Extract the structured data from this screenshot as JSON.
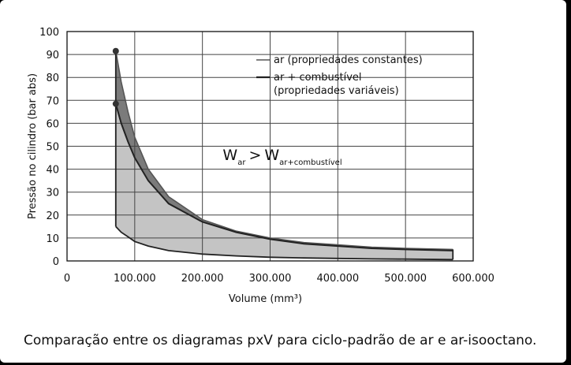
{
  "chart_data": {
    "type": "area",
    "xlabel": "Volume (mm³)",
    "ylabel": "Pressão no cilindro (bar abs)",
    "xlim": [
      0,
      600000
    ],
    "ylim": [
      0,
      100
    ],
    "x_ticks": [
      0,
      100000,
      200000,
      300000,
      400000,
      500000,
      600000
    ],
    "x_tick_labels": [
      "0",
      "100.000",
      "200.000",
      "300.000",
      "400.000",
      "500.000",
      "600.000"
    ],
    "y_ticks": [
      0,
      10,
      20,
      30,
      40,
      50,
      60,
      70,
      80,
      90,
      100
    ],
    "y_tick_labels": [
      "0",
      "10",
      "20",
      "30",
      "40",
      "50",
      "60",
      "70",
      "80",
      "90",
      "100"
    ],
    "grid": true,
    "legend_position": "top-right",
    "series": [
      {
        "name": "ar (propriedades constantes)",
        "color": "#7a7a7a",
        "expansion": {
          "x": [
            72000,
            80000,
            90000,
            100000,
            120000,
            150000,
            200000,
            250000,
            300000,
            350000,
            400000,
            450000,
            500000,
            570000
          ],
          "y": [
            91.5,
            78,
            65,
            54,
            40,
            28,
            18,
            13,
            10,
            8,
            7,
            6,
            5.5,
            5
          ]
        }
      },
      {
        "name": "ar + combustível\n(propriedades variáveis)",
        "color": "#222222",
        "expansion": {
          "x": [
            72000,
            80000,
            90000,
            100000,
            120000,
            150000,
            200000,
            250000,
            300000,
            350000,
            400000,
            450000,
            500000,
            570000
          ],
          "y": [
            68.5,
            60,
            52,
            45,
            35,
            25,
            17,
            12.5,
            9.5,
            7.5,
            6.5,
            5.5,
            5,
            4.5
          ]
        }
      },
      {
        "name": "",
        "color": "#222222",
        "compression": {
          "x": [
            72000,
            80000,
            90000,
            100000,
            120000,
            150000,
            200000,
            250000,
            300000,
            350000,
            400000,
            450000,
            500000,
            570000
          ],
          "y": [
            15,
            12.5,
            10.5,
            8.5,
            6.5,
            4.5,
            3,
            2.2,
            1.6,
            1.3,
            1.1,
            0.9,
            0.8,
            0.6
          ]
        }
      }
    ],
    "annotation": {
      "main": "W",
      "sub1": "ar",
      "op": ">",
      "main2": "W",
      "sub2": "ar+combustível",
      "x": 230000,
      "y": 44
    }
  },
  "caption": "Comparação entre os diagramas pxV para ciclo-padrão de ar e ar-isooctano.",
  "colors": {
    "fill_air": "#7b7b7b",
    "fill_fuel": "#c4c4c4",
    "grid": "#444444"
  }
}
